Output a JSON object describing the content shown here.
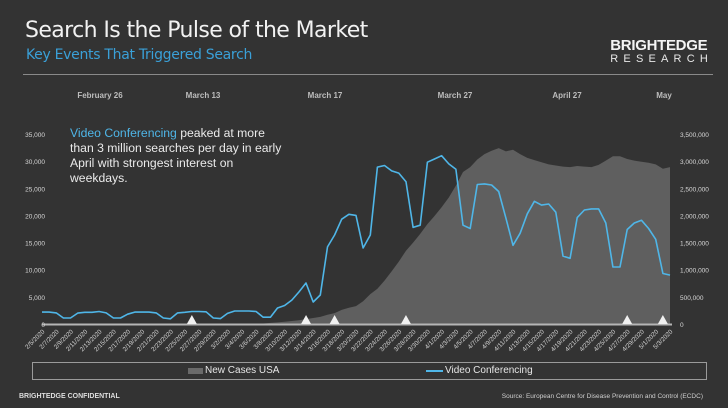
{
  "header": {
    "title": "Search Is the Pulse of the Market",
    "subtitle": "Key Events That Triggered Search",
    "logo_line1": "BRIGHTEDGE",
    "logo_line2": "RESEARCH"
  },
  "annotation": {
    "highlight": "Video Conferencing",
    "text": " peaked at more than 3 million searches per day in early April with strongest interest on weekdays."
  },
  "footer": {
    "confidential": "BRIGHTEDGE CONFIDENTIAL",
    "source": "Source: European Centre for Disease Prevention and Control (ECDC)"
  },
  "colors": {
    "background": "#333333",
    "area": "#5f5f5f",
    "line": "#4fb6e8",
    "accent": "#3aa0d8"
  },
  "chart_data": {
    "type": "line",
    "grid": false,
    "legend_position": "bottom",
    "events": [
      {
        "label": "February 26",
        "date": "2/26/2020"
      },
      {
        "label": "March 13",
        "date": "3/13/2020"
      },
      {
        "label": "March 17",
        "date": "3/17/2020"
      },
      {
        "label": "March 27",
        "date": "3/27/2020"
      },
      {
        "label": "April 27",
        "date": "4/27/2020"
      },
      {
        "label": "May",
        "date": "5/2/2020"
      }
    ],
    "y_left": {
      "range": [
        0,
        35000
      ],
      "ticks": [
        "0",
        "5,000",
        "10,000",
        "15,000",
        "20,000",
        "25,000",
        "30,000",
        "35,000"
      ]
    },
    "y_right": {
      "range": [
        0,
        3500000
      ],
      "ticks": [
        "0",
        "500,000",
        "1,000,000",
        "1,500,000",
        "2,000,000",
        "2,500,000",
        "3,000,000",
        "3,500,000"
      ]
    },
    "x": [
      "2/5/2020",
      "2/6/2020",
      "2/7/2020",
      "2/8/2020",
      "2/9/2020",
      "2/10/2020",
      "2/11/2020",
      "2/12/2020",
      "2/13/2020",
      "2/14/2020",
      "2/15/2020",
      "2/16/2020",
      "2/17/2020",
      "2/18/2020",
      "2/19/2020",
      "2/20/2020",
      "2/21/2020",
      "2/22/2020",
      "2/23/2020",
      "2/24/2020",
      "2/25/2020",
      "2/26/2020",
      "2/27/2020",
      "2/28/2020",
      "2/29/2020",
      "3/1/2020",
      "3/2/2020",
      "3/3/2020",
      "3/4/2020",
      "3/5/2020",
      "3/6/2020",
      "3/7/2020",
      "3/8/2020",
      "3/9/2020",
      "3/10/2020",
      "3/11/2020",
      "3/12/2020",
      "3/13/2020",
      "3/14/2020",
      "3/15/2020",
      "3/16/2020",
      "3/17/2020",
      "3/18/2020",
      "3/19/2020",
      "3/20/2020",
      "3/21/2020",
      "3/22/2020",
      "3/23/2020",
      "3/24/2020",
      "3/25/2020",
      "3/26/2020",
      "3/27/2020",
      "3/28/2020",
      "3/29/2020",
      "3/30/2020",
      "3/31/2020",
      "4/1/2020",
      "4/2/2020",
      "4/3/2020",
      "4/4/2020",
      "4/5/2020",
      "4/6/2020",
      "4/7/2020",
      "4/8/2020",
      "4/9/2020",
      "4/10/2020",
      "4/11/2020",
      "4/12/2020",
      "4/13/2020",
      "4/14/2020",
      "4/15/2020",
      "4/16/2020",
      "4/17/2020",
      "4/18/2020",
      "4/19/2020",
      "4/20/2020",
      "4/21/2020",
      "4/22/2020",
      "4/23/2020",
      "4/24/2020",
      "4/25/2020",
      "4/26/2020",
      "4/27/2020",
      "4/28/2020",
      "4/29/2020",
      "4/30/2020",
      "5/1/2020",
      "5/2/2020",
      "5/3/2020"
    ],
    "x_tick_labels": [
      "2/5/2020",
      "2/7/2020",
      "2/9/2020",
      "2/11/2020",
      "2/13/2020",
      "2/15/2020",
      "2/17/2020",
      "2/19/2020",
      "2/21/2020",
      "2/23/2020",
      "2/25/2020",
      "2/27/2020",
      "2/29/2020",
      "3/2/2020",
      "3/4/2020",
      "3/6/2020",
      "3/8/2020",
      "3/10/2020",
      "3/12/2020",
      "3/14/2020",
      "3/16/2020",
      "3/18/2020",
      "3/20/2020",
      "3/22/2020",
      "3/24/2020",
      "3/26/2020",
      "3/28/2020",
      "3/30/2020",
      "4/1/2020",
      "4/3/2020",
      "4/5/2020",
      "4/7/2020",
      "4/9/2020",
      "4/11/2020",
      "4/13/2020",
      "4/15/2020",
      "4/17/2020",
      "4/19/2020",
      "4/21/2020",
      "4/23/2020",
      "4/25/2020",
      "4/27/2020",
      "4/29/2020",
      "5/1/2020",
      "5/3/2020"
    ],
    "series": [
      {
        "name": "New Cases USA",
        "type": "area",
        "axis": "left",
        "values": [
          0,
          0,
          0,
          0,
          0,
          0,
          0,
          0,
          0,
          0,
          0,
          0,
          0,
          0,
          0,
          0,
          0,
          0,
          0,
          0,
          0,
          0,
          0,
          0,
          0,
          0,
          0,
          0,
          0,
          0,
          50,
          100,
          200,
          300,
          400,
          550,
          700,
          900,
          1100,
          1300,
          1700,
          2000,
          2600,
          3000,
          3300,
          4200,
          5500,
          6500,
          8000,
          9700,
          11500,
          13500,
          15000,
          16600,
          18400,
          19900,
          21500,
          23300,
          25500,
          28000,
          28900,
          30300,
          31300,
          31900,
          32400,
          31800,
          32100,
          31300,
          30600,
          30200,
          29800,
          29400,
          29200,
          29000,
          28900,
          29100,
          29000,
          28900,
          29300,
          30100,
          30900,
          30900,
          30400,
          30100,
          29900,
          29700,
          29400,
          28600,
          28900
        ]
      },
      {
        "name": "Video Conferencing",
        "type": "line",
        "axis": "right",
        "values": [
          220000,
          220000,
          205000,
          110000,
          110000,
          200000,
          215000,
          215000,
          230000,
          205000,
          110000,
          110000,
          180000,
          220000,
          220000,
          220000,
          205000,
          110000,
          95000,
          205000,
          215000,
          230000,
          230000,
          225000,
          110000,
          100000,
          195000,
          240000,
          240000,
          240000,
          230000,
          125000,
          125000,
          295000,
          340000,
          440000,
          590000,
          755000,
          405000,
          534000,
          1420000,
          1640000,
          1930000,
          2020000,
          2000000,
          1400000,
          1640000,
          2890000,
          2920000,
          2820000,
          2780000,
          2620000,
          1780000,
          1820000,
          2980000,
          3040000,
          3100000,
          2950000,
          2850000,
          1820000,
          1760000,
          2570000,
          2580000,
          2560000,
          2440000,
          1950000,
          1450000,
          1670000,
          2030000,
          2260000,
          2190000,
          2210000,
          2060000,
          1250000,
          1210000,
          1960000,
          2100000,
          2120000,
          2120000,
          1860000,
          1050000,
          1050000,
          1740000,
          1860000,
          1910000,
          1760000,
          1560000,
          930000,
          900000
        ]
      }
    ]
  }
}
